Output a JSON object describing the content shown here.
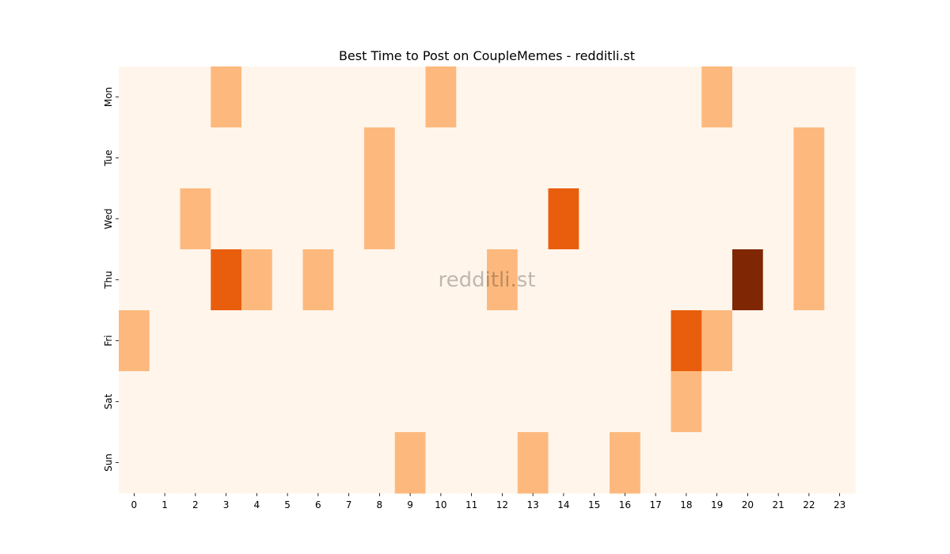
{
  "chart_data": {
    "type": "heatmap",
    "title": "Best Time to Post on CoupleMemes - redditli.st",
    "watermark": "redditli.st",
    "x_categories": [
      "0",
      "1",
      "2",
      "3",
      "4",
      "5",
      "6",
      "7",
      "8",
      "9",
      "10",
      "11",
      "12",
      "13",
      "14",
      "15",
      "16",
      "17",
      "18",
      "19",
      "20",
      "21",
      "22",
      "23"
    ],
    "y_categories": [
      "Mon",
      "Tue",
      "Wed",
      "Thu",
      "Fri",
      "Sat",
      "Sun"
    ],
    "values": [
      [
        0,
        0,
        0,
        1,
        0,
        0,
        0,
        0,
        0,
        0,
        1,
        0,
        0,
        0,
        0,
        0,
        0,
        0,
        0,
        1,
        0,
        0,
        0,
        0
      ],
      [
        0,
        0,
        0,
        0,
        0,
        0,
        0,
        0,
        1,
        0,
        0,
        0,
        0,
        0,
        0,
        0,
        0,
        0,
        0,
        0,
        0,
        0,
        1,
        0
      ],
      [
        0,
        0,
        1,
        0,
        0,
        0,
        0,
        0,
        1,
        0,
        0,
        0,
        0,
        0,
        2,
        0,
        0,
        0,
        0,
        0,
        0,
        0,
        1,
        0
      ],
      [
        0,
        0,
        0,
        2,
        1,
        0,
        1,
        0,
        0,
        0,
        0,
        0,
        1,
        0,
        0,
        0,
        0,
        0,
        0,
        0,
        3,
        0,
        1,
        0
      ],
      [
        1,
        0,
        0,
        0,
        0,
        0,
        0,
        0,
        0,
        0,
        0,
        0,
        0,
        0,
        0,
        0,
        0,
        0,
        2,
        1,
        0,
        0,
        0,
        0
      ],
      [
        0,
        0,
        0,
        0,
        0,
        0,
        0,
        0,
        0,
        0,
        0,
        0,
        0,
        0,
        0,
        0,
        0,
        0,
        1,
        0,
        0,
        0,
        0,
        0
      ],
      [
        0,
        0,
        0,
        0,
        0,
        0,
        0,
        0,
        0,
        1,
        0,
        0,
        0,
        1,
        0,
        0,
        1,
        0,
        0,
        0,
        0,
        0,
        0,
        0
      ]
    ],
    "colormap": "Oranges",
    "level_colors": [
      "#fff5eb",
      "#fdb97d",
      "#e95e0d",
      "#7f2704"
    ],
    "grid": false,
    "legend": "none"
  }
}
